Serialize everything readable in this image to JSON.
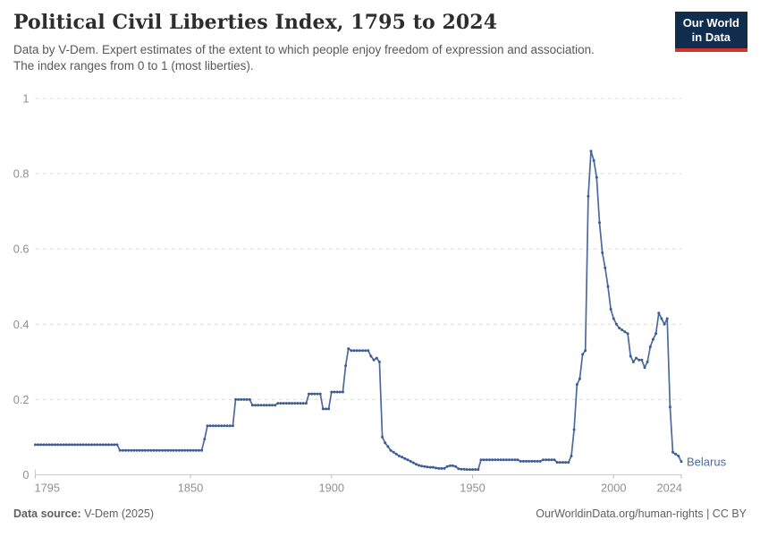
{
  "header": {
    "title": "Political Civil Liberties Index, 1795 to 2024",
    "subtitle_line1": "Data by V-Dem. Expert estimates of the extent to which people enjoy freedom of expression and association.",
    "subtitle_line2": "The index ranges from 0 to 1 (most liberties).",
    "logo": {
      "line1": "Our World",
      "line2": "in Data",
      "bg_color": "#102D4E",
      "bar_color": "#D0342C",
      "text_color": "#ffffff"
    }
  },
  "footer": {
    "source_label": "Data source:",
    "source_value": " V-Dem (2025)",
    "credit": "OurWorldinData.org/human-rights | CC BY"
  },
  "chart_data": {
    "type": "line",
    "title": "Political Civil Liberties Index, 1795 to 2024",
    "entity": "Belarus",
    "xlabel": "",
    "ylabel": "",
    "x_start": 1795,
    "x_end": 2024,
    "x_step": 1,
    "xlim": [
      1795,
      2024
    ],
    "ylim": [
      0,
      1
    ],
    "xticks": [
      1795,
      1850,
      1900,
      1950,
      2000,
      2024
    ],
    "yticks": [
      0,
      0.2,
      0.4,
      0.6,
      0.8,
      1
    ],
    "ytick_labels": [
      "0",
      "0.2",
      "0.4",
      "0.6",
      "0.8",
      "1"
    ],
    "grid": "horizontal-dashed",
    "legend_position": "label-at-line-end",
    "line_color": "#4C6A9C",
    "point_color": "#3D5C96",
    "grid_color": "#dcdcdc",
    "axis_color": "#cccccc",
    "tick_label_color": "#8f8f8f",
    "series": [
      {
        "name": "Belarus",
        "values": [
          0.08,
          0.08,
          0.08,
          0.08,
          0.08,
          0.08,
          0.08,
          0.08,
          0.08,
          0.08,
          0.08,
          0.08,
          0.08,
          0.08,
          0.08,
          0.08,
          0.08,
          0.08,
          0.08,
          0.08,
          0.08,
          0.08,
          0.08,
          0.08,
          0.08,
          0.08,
          0.08,
          0.08,
          0.08,
          0.08,
          0.065,
          0.065,
          0.065,
          0.065,
          0.065,
          0.065,
          0.065,
          0.065,
          0.065,
          0.065,
          0.065,
          0.065,
          0.065,
          0.065,
          0.065,
          0.065,
          0.065,
          0.065,
          0.065,
          0.065,
          0.065,
          0.065,
          0.065,
          0.065,
          0.065,
          0.065,
          0.065,
          0.065,
          0.065,
          0.065,
          0.095,
          0.13,
          0.13,
          0.13,
          0.13,
          0.13,
          0.13,
          0.13,
          0.13,
          0.13,
          0.13,
          0.2,
          0.2,
          0.2,
          0.2,
          0.2,
          0.2,
          0.185,
          0.185,
          0.185,
          0.185,
          0.185,
          0.185,
          0.185,
          0.185,
          0.185,
          0.19,
          0.19,
          0.19,
          0.19,
          0.19,
          0.19,
          0.19,
          0.19,
          0.19,
          0.19,
          0.19,
          0.215,
          0.215,
          0.215,
          0.215,
          0.215,
          0.175,
          0.175,
          0.175,
          0.22,
          0.22,
          0.22,
          0.22,
          0.22,
          0.29,
          0.335,
          0.33,
          0.33,
          0.33,
          0.33,
          0.33,
          0.33,
          0.33,
          0.315,
          0.305,
          0.31,
          0.3,
          0.1,
          0.085,
          0.075,
          0.065,
          0.06,
          0.055,
          0.05,
          0.047,
          0.043,
          0.04,
          0.036,
          0.032,
          0.028,
          0.025,
          0.023,
          0.022,
          0.021,
          0.02,
          0.02,
          0.018,
          0.017,
          0.017,
          0.017,
          0.022,
          0.024,
          0.024,
          0.022,
          0.016,
          0.015,
          0.015,
          0.014,
          0.014,
          0.014,
          0.014,
          0.014,
          0.04,
          0.04,
          0.04,
          0.04,
          0.04,
          0.04,
          0.04,
          0.04,
          0.04,
          0.04,
          0.04,
          0.04,
          0.04,
          0.04,
          0.036,
          0.036,
          0.036,
          0.036,
          0.036,
          0.036,
          0.036,
          0.036,
          0.04,
          0.04,
          0.04,
          0.04,
          0.04,
          0.033,
          0.033,
          0.033,
          0.033,
          0.033,
          0.05,
          0.12,
          0.24,
          0.255,
          0.32,
          0.33,
          0.74,
          0.86,
          0.835,
          0.79,
          0.67,
          0.59,
          0.55,
          0.5,
          0.44,
          0.415,
          0.4,
          0.39,
          0.385,
          0.38,
          0.375,
          0.315,
          0.3,
          0.31,
          0.305,
          0.305,
          0.285,
          0.3,
          0.34,
          0.36,
          0.375,
          0.43,
          0.415,
          0.4,
          0.415,
          0.18,
          0.06,
          0.055,
          0.05,
          0.035
        ]
      }
    ]
  }
}
